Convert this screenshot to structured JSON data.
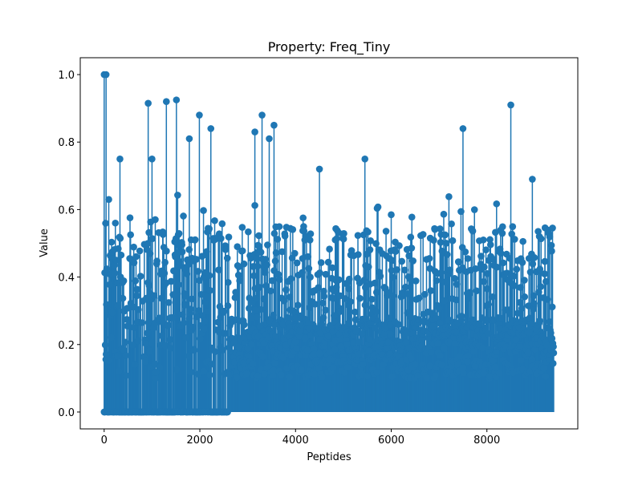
{
  "chart_data": {
    "type": "stem",
    "title": "Property: Freq_Tiny",
    "xlabel": "Peptides",
    "ylabel": "Value",
    "xlim": [
      -500,
      9900
    ],
    "ylim": [
      -0.05,
      1.05
    ],
    "xticks": [
      0,
      2000,
      4000,
      6000,
      8000
    ],
    "xtick_labels": [
      "0",
      "2000",
      "4000",
      "6000",
      "8000"
    ],
    "yticks": [
      0.0,
      0.2,
      0.4,
      0.6,
      0.8,
      1.0
    ],
    "ytick_labels": [
      "0.0",
      "0.2",
      "0.4",
      "0.6",
      "0.8",
      "1.0"
    ],
    "n_points": 9400,
    "color": "#1f77b4",
    "notable_points": [
      {
        "x": 0,
        "y": 1.0
      },
      {
        "x": 40,
        "y": 1.0
      },
      {
        "x": 330,
        "y": 0.75
      },
      {
        "x": 920,
        "y": 0.915
      },
      {
        "x": 1000,
        "y": 0.75
      },
      {
        "x": 1300,
        "y": 0.92
      },
      {
        "x": 1510,
        "y": 0.925
      },
      {
        "x": 1780,
        "y": 0.81
      },
      {
        "x": 1990,
        "y": 0.88
      },
      {
        "x": 2230,
        "y": 0.84
      },
      {
        "x": 3150,
        "y": 0.83
      },
      {
        "x": 3300,
        "y": 0.88
      },
      {
        "x": 3450,
        "y": 0.81
      },
      {
        "x": 3550,
        "y": 0.85
      },
      {
        "x": 4500,
        "y": 0.72
      },
      {
        "x": 5450,
        "y": 0.75
      },
      {
        "x": 7500,
        "y": 0.84
      },
      {
        "x": 8500,
        "y": 0.91
      },
      {
        "x": 8950,
        "y": 0.69
      }
    ],
    "band": {
      "low": 0.1,
      "high": 0.55
    },
    "zero_region_end": 2600,
    "seed": 12345
  }
}
